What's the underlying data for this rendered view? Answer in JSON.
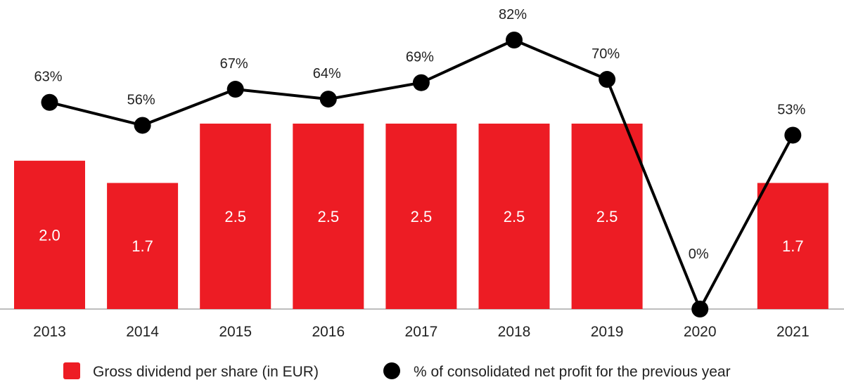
{
  "chart_data": {
    "type": "bar",
    "categories": [
      "2013",
      "2014",
      "2015",
      "2016",
      "2017",
      "2018",
      "2019",
      "2020",
      "2021"
    ],
    "series": [
      {
        "name": "Gross dividend per share (in EUR)",
        "type": "bar",
        "values": [
          2.0,
          1.7,
          2.5,
          2.5,
          2.5,
          2.5,
          2.5,
          0,
          1.7
        ],
        "labels": [
          "2.0",
          "1.7",
          "2.5",
          "2.5",
          "2.5",
          "2.5",
          "2.5",
          "",
          "1.7"
        ]
      },
      {
        "name": "% of consolidated net profit for the previous year",
        "type": "line",
        "values": [
          63,
          56,
          67,
          64,
          69,
          82,
          70,
          0,
          53
        ],
        "labels": [
          "63%",
          "56%",
          "67%",
          "64%",
          "69%",
          "82%",
          "70%",
          "0%",
          "53%"
        ]
      }
    ],
    "bar_ylim": [
      0,
      2.5
    ],
    "line_ylim": [
      0,
      82
    ],
    "legend_position": "bottom"
  },
  "colors": {
    "bar": "#ed1c24",
    "line": "#000000",
    "axis": "#bdbdbd"
  }
}
